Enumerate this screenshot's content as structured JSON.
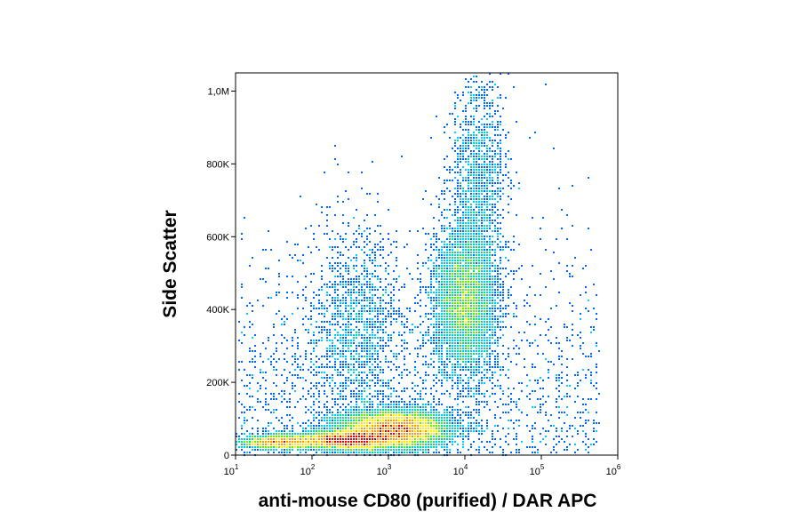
{
  "chart_data": {
    "type": "scatter",
    "subtype": "flow-cytometry-density-dot-plot",
    "xlabel": "anti-mouse CD80 (purified) / DAR APC",
    "ylabel": "Side Scatter",
    "x_scale": "log",
    "xlim": [
      10,
      1000000
    ],
    "ylim": [
      0,
      1050000
    ],
    "x_ticks": [
      {
        "value": 10,
        "base": "10",
        "exp": "1"
      },
      {
        "value": 100,
        "base": "10",
        "exp": "2"
      },
      {
        "value": 1000,
        "base": "10",
        "exp": "3"
      },
      {
        "value": 10000,
        "base": "10",
        "exp": "4"
      },
      {
        "value": 100000,
        "base": "10",
        "exp": "5"
      },
      {
        "value": 1000000,
        "base": "10",
        "exp": "6"
      }
    ],
    "y_ticks": [
      {
        "value": 0,
        "label": "0"
      },
      {
        "value": 200000,
        "label": "200K"
      },
      {
        "value": 400000,
        "label": "400K"
      },
      {
        "value": 600000,
        "label": "600K"
      },
      {
        "value": 800000,
        "label": "800K"
      },
      {
        "value": 1000000,
        "label": "1,0M"
      }
    ],
    "grid": false,
    "legend": "none",
    "density_colors": [
      "#0000cc",
      "#0066ff",
      "#00ccff",
      "#00e08a",
      "#66ee00",
      "#ffee00",
      "#ff9900",
      "#ee0000"
    ],
    "populations": [
      {
        "x_center": 1200,
        "y_center": 70000,
        "log_x_spread": 0.35,
        "y_spread": 25000,
        "density": "highest"
      },
      {
        "x_center": 300,
        "y_center": 40000,
        "log_x_spread": 0.3,
        "y_spread": 12000,
        "density": "high"
      },
      {
        "x_center": 10000,
        "y_center": 420000,
        "log_x_spread": 0.2,
        "y_spread": 100000,
        "density": "high"
      },
      {
        "x_center": 15000,
        "y_center": 750000,
        "log_x_spread": 0.18,
        "y_spread": 140000,
        "density": "low"
      },
      {
        "x_center": 400,
        "y_center": 350000,
        "log_x_spread": 0.3,
        "y_spread": 140000,
        "density": "low"
      },
      {
        "x_center": 40,
        "y_center": 35000,
        "log_x_spread": 0.25,
        "y_spread": 10000,
        "density": "medium"
      }
    ]
  }
}
